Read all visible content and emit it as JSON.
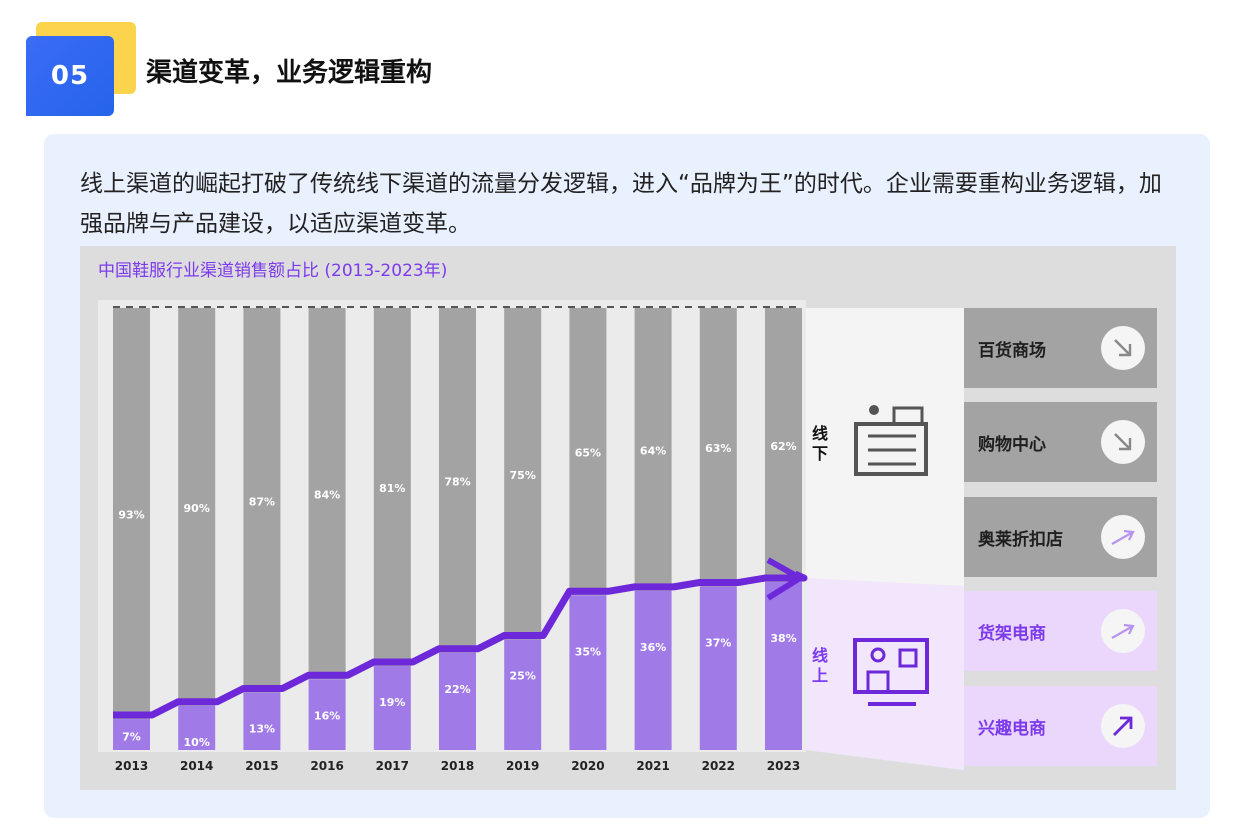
{
  "section": {
    "number": "05",
    "title": "渠道变革，业务逻辑重构"
  },
  "intro": "线上渠道的崛起打破了传统线下渠道的流量分发逻辑，进入“品牌为王”的时代。企业需要重构业务逻辑，加强品牌与产品建设，以适应渠道变革。",
  "chart_data": {
    "type": "bar",
    "title": "中国鞋服行业渠道销售额占比 (2013-2023年)",
    "categories": [
      "2013",
      "2014",
      "2015",
      "2016",
      "2017",
      "2018",
      "2019",
      "2020",
      "2021",
      "2022",
      "2023"
    ],
    "series": [
      {
        "name": "线下",
        "values": [
          93,
          90,
          87,
          84,
          81,
          78,
          75,
          65,
          64,
          63,
          62
        ],
        "labels": [
          "93%",
          "90%",
          "87%",
          "84%",
          "81%",
          "78%",
          "75%",
          "65%",
          "64%",
          "63%",
          "62%"
        ]
      },
      {
        "name": "线上",
        "values": [
          7,
          10,
          13,
          16,
          19,
          22,
          25,
          35,
          36,
          37,
          38
        ],
        "labels": [
          "7%",
          "10%",
          "13%",
          "16%",
          "19%",
          "22%",
          "25%",
          "35%",
          "36%",
          "37%",
          "38%"
        ]
      }
    ],
    "ylim": [
      0,
      100
    ],
    "stacked": true
  },
  "channels": {
    "offline_label": "线下",
    "online_label": "线上",
    "offline_items": [
      {
        "label": "百货商场",
        "trend": "down"
      },
      {
        "label": "购物中心",
        "trend": "down"
      },
      {
        "label": "奥莱折扣店",
        "trend": "up"
      }
    ],
    "online_items": [
      {
        "label": "货架电商",
        "trend": "up"
      },
      {
        "label": "兴趣电商",
        "trend": "up-strong"
      }
    ]
  },
  "colors": {
    "offline": "#a3a3a3",
    "online": "#a07be8",
    "accent": "#6d28d9",
    "badge": "#2563eb",
    "badge_back": "#fcd34d"
  }
}
